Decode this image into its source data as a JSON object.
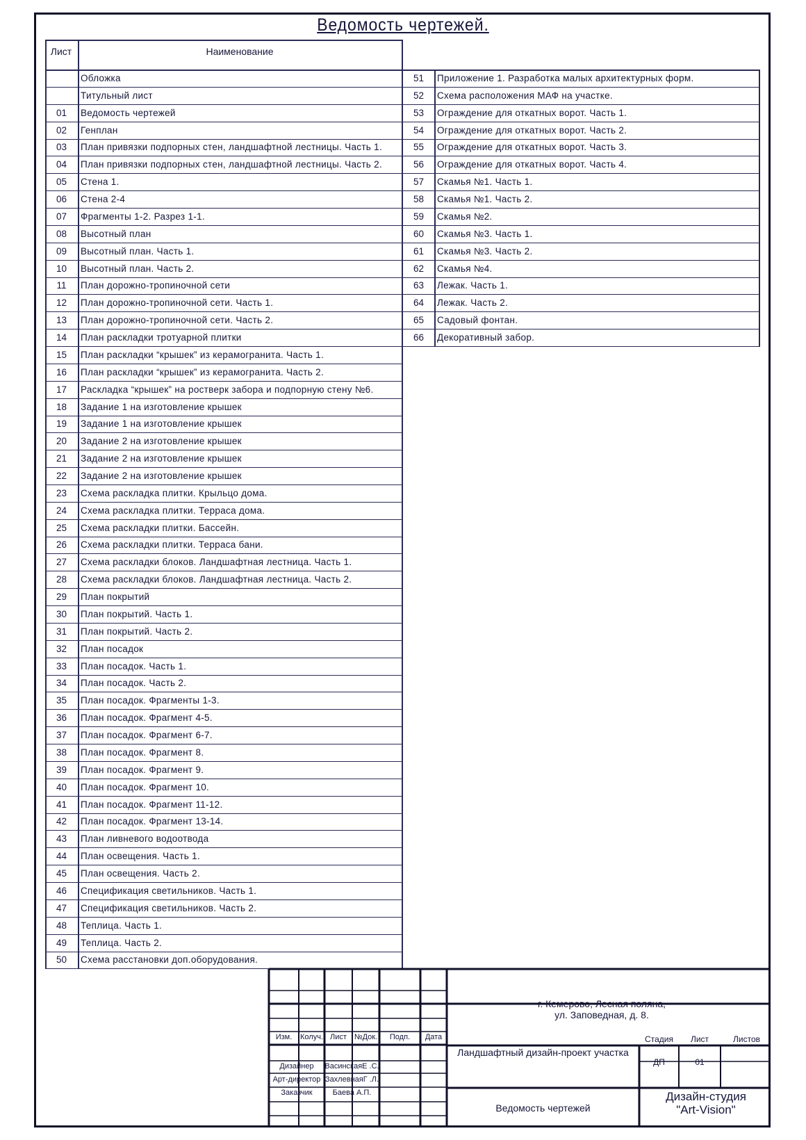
{
  "title": "Ведомость чертежей.",
  "table": {
    "col_sheet": "Лист",
    "col_name": "Наименование",
    "left_rows": [
      {
        "n": "",
        "name": "Обложка"
      },
      {
        "n": "",
        "name": "Титульный лист"
      },
      {
        "n": "01",
        "name": "Ведомость чертежей"
      },
      {
        "n": "02",
        "name": "Генплан"
      },
      {
        "n": "03",
        "name": "План привязки подпорных стен, ландшафтной лестницы. Часть 1."
      },
      {
        "n": "04",
        "name": "План привязки подпорных стен, ландшафтной лестницы. Часть 2."
      },
      {
        "n": "05",
        "name": "Стена 1."
      },
      {
        "n": "06",
        "name": "Стена 2-4"
      },
      {
        "n": "07",
        "name": "Фрагменты 1-2. Разрез 1-1."
      },
      {
        "n": "08",
        "name": "Высотный план"
      },
      {
        "n": "09",
        "name": "Высотный план. Часть 1."
      },
      {
        "n": "10",
        "name": "Высотный план. Часть 2."
      },
      {
        "n": "11",
        "name": "План дорожно-тропиночной сети"
      },
      {
        "n": "12",
        "name": "План дорожно-тропиночной сети. Часть 1."
      },
      {
        "n": "13",
        "name": "План дорожно-тропиночной сети. Часть 2."
      },
      {
        "n": "14",
        "name": "План раскладки тротуарной плитки"
      },
      {
        "n": "15",
        "name": "План раскладки “крышек” из керамогранита. Часть 1."
      },
      {
        "n": "16",
        "name": "План раскладки “крышек” из керамогранита. Часть 2."
      },
      {
        "n": "17",
        "name": "Раскладка “крышек” на ростверк забора и подпорную стену №6."
      },
      {
        "n": "18",
        "name": "Задание 1 на изготовление крышек"
      },
      {
        "n": "19",
        "name": "Задание 1 на изготовление крышек"
      },
      {
        "n": "20",
        "name": "Задание 2 на изготовление крышек"
      },
      {
        "n": "21",
        "name": "Задание 2 на изготовление крышек"
      },
      {
        "n": "22",
        "name": "Задание 2 на изготовление крышек"
      },
      {
        "n": "23",
        "name": "Схема раскладка плитки. Крыльцо дома."
      },
      {
        "n": "24",
        "name": "Схема раскладка плитки. Терраса дома."
      },
      {
        "n": "25",
        "name": "Схема раскладки плитки. Бассейн."
      },
      {
        "n": "26",
        "name": "Схема раскладки плитки. Терраса бани."
      },
      {
        "n": "27",
        "name": "Схема раскладки блоков. Ландшафтная лестница. Часть 1."
      },
      {
        "n": "28",
        "name": "Схема раскладки блоков. Ландшафтная лестница. Часть 2."
      },
      {
        "n": "29",
        "name": "План покрытий"
      },
      {
        "n": "30",
        "name": "План покрытий. Часть 1."
      },
      {
        "n": "31",
        "name": "План покрытий. Часть 2."
      },
      {
        "n": "32",
        "name": "План посадок"
      },
      {
        "n": "33",
        "name": "План посадок. Часть 1."
      },
      {
        "n": "34",
        "name": "План посадок. Часть 2."
      },
      {
        "n": "35",
        "name": "План посадок. Фрагменты 1-3."
      },
      {
        "n": "36",
        "name": "План посадок. Фрагмент  4-5."
      },
      {
        "n": "37",
        "name": "План посадок. Фрагмент 6-7."
      },
      {
        "n": "38",
        "name": "План посадок. Фрагмент 8."
      },
      {
        "n": "39",
        "name": "План посадок. Фрагмент 9."
      },
      {
        "n": "40",
        "name": "План посадок. Фрагмент 10."
      },
      {
        "n": "41",
        "name": "План посадок. Фрагмент 11-12."
      },
      {
        "n": "42",
        "name": "План посадок. Фрагмент 13-14."
      },
      {
        "n": "43",
        "name": "План ливневого водоотвода"
      },
      {
        "n": "44",
        "name": "План освещения. Часть 1."
      },
      {
        "n": "45",
        "name": "План освещения. Часть 2."
      },
      {
        "n": "46",
        "name": "Спецификация светильников. Часть 1."
      },
      {
        "n": "47",
        "name": "Спецификация светильников. Часть 2."
      },
      {
        "n": "48",
        "name": "Теплица. Часть 1."
      },
      {
        "n": "49",
        "name": "Теплица. Часть 2."
      },
      {
        "n": "50",
        "name": "Схема расстановки доп.оборудования."
      }
    ],
    "right_rows": [
      {
        "n": "51",
        "name": "Приложение 1. Разработка малых архитектурных форм."
      },
      {
        "n": "52",
        "name": "Схема расположения МАФ на участке."
      },
      {
        "n": "53",
        "name": "Ограждение для откатных ворот. Часть 1."
      },
      {
        "n": "54",
        "name": "Ограждение для откатных ворот. Часть 2."
      },
      {
        "n": "55",
        "name": "Ограждение для откатных ворот. Часть 3."
      },
      {
        "n": "56",
        "name": "Ограждение для откатных ворот. Часть 4."
      },
      {
        "n": "57",
        "name": "Скамья №1. Часть 1."
      },
      {
        "n": "58",
        "name": "Скамья №1. Часть 2."
      },
      {
        "n": "59",
        "name": "Скамья №2."
      },
      {
        "n": "60",
        "name": "Скамья №3. Часть 1."
      },
      {
        "n": "61",
        "name": "Скамья №3. Часть 2."
      },
      {
        "n": "62",
        "name": "Скамья №4."
      },
      {
        "n": "63",
        "name": "Лежак. Часть 1."
      },
      {
        "n": "64",
        "name": "Лежак. Часть 2."
      },
      {
        "n": "65",
        "name": "Садовый фонтан."
      },
      {
        "n": "66",
        "name": "Декоративный забор."
      }
    ]
  },
  "title_block": {
    "headers": [
      "Изм.",
      "Колуч.",
      "Лист",
      "№Док.",
      "Подп.",
      "Дата"
    ],
    "roles": [
      {
        "role": "Дизайнер",
        "name": "ВасинскаяЕ .С."
      },
      {
        "role": "Арт-директор",
        "name": "ЗахлевнаяГ .Л."
      },
      {
        "role": "Заказчик",
        "name": "Баева А.П."
      }
    ],
    "address_line1": "г. Кемерово, Лесная поляна,",
    "address_line2": "ул. Заповедная, д. 8.",
    "project": "Ландшафтный дизайн-проект участка",
    "stage_label": "Стадия",
    "sheet_label": "Лист",
    "sheets_label": "Листов",
    "stage": "ДП",
    "sheet": "01",
    "sheets": "",
    "doc_title": "Ведомость чертежей",
    "studio_line1": "Дизайн-студия",
    "studio_line2": "\"Art-Vision\""
  }
}
